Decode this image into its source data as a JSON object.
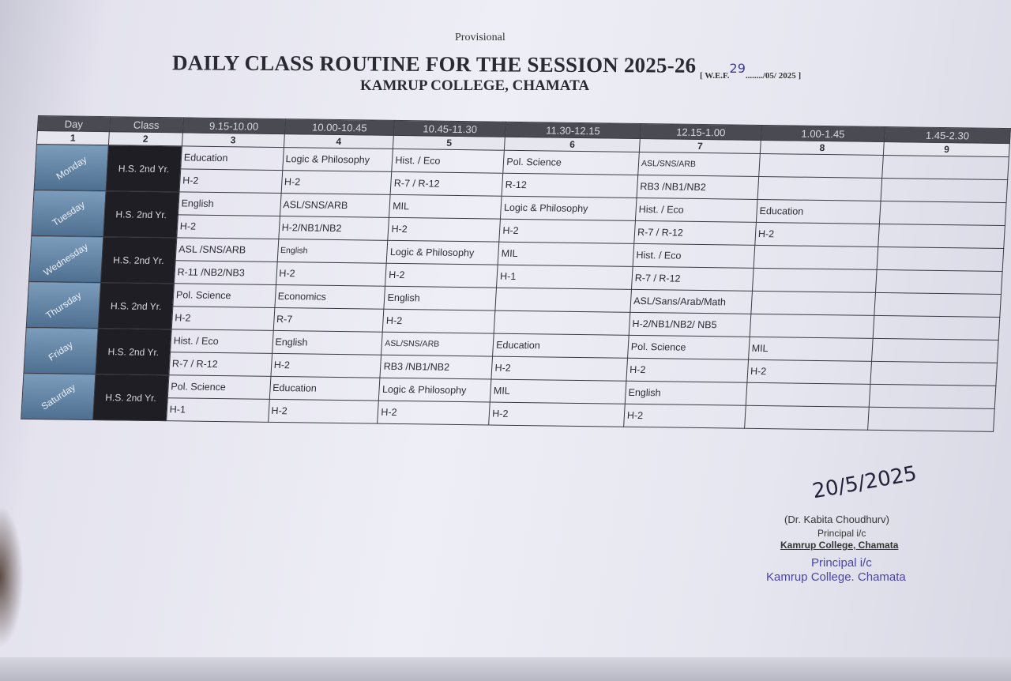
{
  "header": {
    "provisional": "Provisional",
    "title": "DAILY CLASS ROUTINE FOR THE SESSION 2025-26",
    "wef_prefix": "[ W.E.F.",
    "wef_day": "29",
    "wef_suffix": "......../05/ 2025 ]",
    "college": "KAMRUP COLLEGE, CHAMATA"
  },
  "table": {
    "headers": [
      "Day",
      "Class",
      "9.15-10.00",
      "10.00-10.45",
      "10.45-11.30",
      "11.30-12.15",
      "12.15-1.00",
      "1.00-1.45",
      "1.45-2.30"
    ],
    "numbers": [
      "1",
      "2",
      "3",
      "4",
      "5",
      "6",
      "7",
      "8",
      "9"
    ],
    "rows": [
      {
        "day": "Monday",
        "class": "H.S. 2nd Yr.",
        "subjects": [
          "Education",
          "Logic & Philosophy",
          "Hist. / Eco",
          "Pol. Science",
          "ASL/SNS/ARB",
          "",
          ""
        ],
        "rooms": [
          "H-2",
          "H-2",
          "R-7 / R-12",
          "R-12",
          "RB3 /NB1/NB2",
          "",
          ""
        ]
      },
      {
        "day": "Tuesday",
        "class": "H.S. 2nd Yr.",
        "subjects": [
          "English",
          "ASL/SNS/ARB",
          "MIL",
          "Logic & Philosophy",
          "Hist. / Eco",
          "Education",
          ""
        ],
        "rooms": [
          "H-2",
          "H-2/NB1/NB2",
          "H-2",
          "H-2",
          "R-7 / R-12",
          "H-2",
          ""
        ]
      },
      {
        "day": "Wednesday",
        "class": "H.S. 2nd Yr.",
        "subjects": [
          "ASL /SNS/ARB",
          "English",
          "Logic & Philosophy",
          "MIL",
          "Hist. / Eco",
          "",
          ""
        ],
        "rooms": [
          "R-11 /NB2/NB3",
          "H-2",
          "H-2",
          "H-1",
          "R-7 / R-12",
          "",
          ""
        ]
      },
      {
        "day": "Thursday",
        "class": "H.S. 2nd Yr.",
        "subjects": [
          "Pol. Science",
          "Economics",
          "English",
          "",
          "ASL/Sans/Arab/Math",
          "",
          ""
        ],
        "rooms": [
          "H-2",
          "R-7",
          "H-2",
          "",
          "H-2/NB1/NB2/ NB5",
          "",
          ""
        ]
      },
      {
        "day": "Friday",
        "class": "H.S. 2nd Yr.",
        "subjects": [
          "Hist. / Eco",
          "English",
          "ASL/SNS/ARB",
          "Education",
          "Pol. Science",
          "MIL",
          ""
        ],
        "rooms": [
          "R-7 / R-12",
          "H-2",
          "RB3 /NB1/NB2",
          "H-2",
          "H-2",
          "H-2",
          ""
        ]
      },
      {
        "day": "Saturday",
        "class": "H.S. 2nd Yr.",
        "subjects": [
          "Pol. Science",
          "Education",
          "Logic & Philosophy",
          "MIL",
          "English",
          "",
          ""
        ],
        "rooms": [
          "H-1",
          "H-2",
          "H-2",
          "H-2",
          "H-2",
          "",
          ""
        ]
      }
    ]
  },
  "signature": {
    "handwritten_date": "20/5/2025",
    "name": "(Dr. Kabita Choudhurv)",
    "title": "Principal i/c",
    "college": "Kamrup College, Chamata",
    "stamp_title": "Principal i/c",
    "stamp_college": "Kamrup College. Chamata"
  },
  "colors": {
    "header_bg": "#4a4a52",
    "day_bg": "#5f80a2",
    "class_bg": "#1e1e24",
    "stamp_ink": "#4b45a8"
  }
}
